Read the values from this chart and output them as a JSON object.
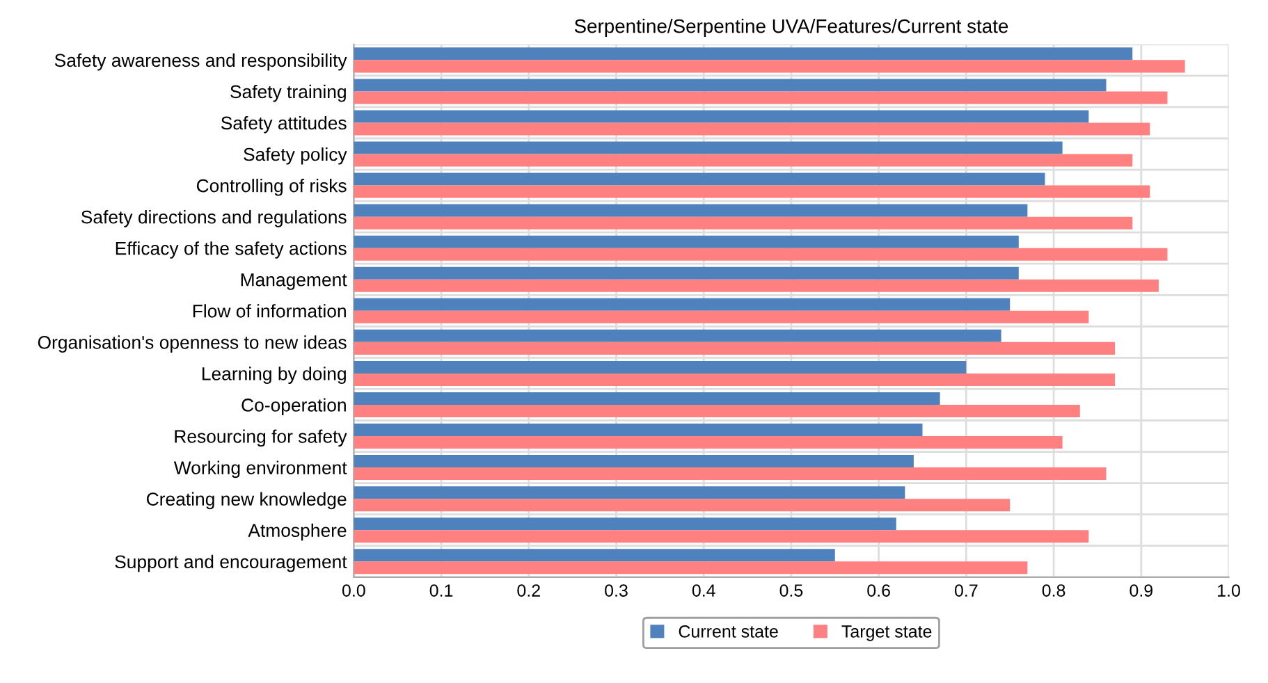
{
  "chart_data": {
    "type": "bar",
    "orientation": "horizontal",
    "title": "Serpentine/Serpentine UVA/Features/Current state",
    "categories": [
      "Safety awareness and responsibility",
      "Safety training",
      "Safety attitudes",
      "Safety policy",
      "Controlling of risks",
      "Safety directions and regulations",
      "Efficacy of the safety actions",
      "Management",
      "Flow of information",
      "Organisation's openness to new ideas",
      "Learning by doing",
      "Co-operation",
      "Resourcing for safety",
      "Working environment",
      "Creating new knowledge",
      "Atmosphere",
      "Support and encouragement"
    ],
    "series": [
      {
        "name": "Current state",
        "color": "#4f81bd",
        "values": [
          0.89,
          0.86,
          0.84,
          0.81,
          0.79,
          0.77,
          0.76,
          0.76,
          0.75,
          0.74,
          0.7,
          0.67,
          0.65,
          0.64,
          0.63,
          0.62,
          0.55
        ]
      },
      {
        "name": "Target state",
        "color": "#ff8080",
        "values": [
          0.95,
          0.93,
          0.91,
          0.89,
          0.91,
          0.89,
          0.93,
          0.92,
          0.84,
          0.87,
          0.87,
          0.83,
          0.81,
          0.86,
          0.75,
          0.84,
          0.77
        ]
      }
    ],
    "xlim": [
      0.0,
      1.0
    ],
    "xticks": [
      {
        "value": 0,
        "label": "0.0"
      },
      0.1,
      0.2,
      0.3,
      0.4,
      0.5,
      0.6,
      0.7,
      0.8,
      0.9,
      {
        "value": 1,
        "label": "1.0"
      }
    ],
    "grid": true,
    "legend": "bottom"
  }
}
